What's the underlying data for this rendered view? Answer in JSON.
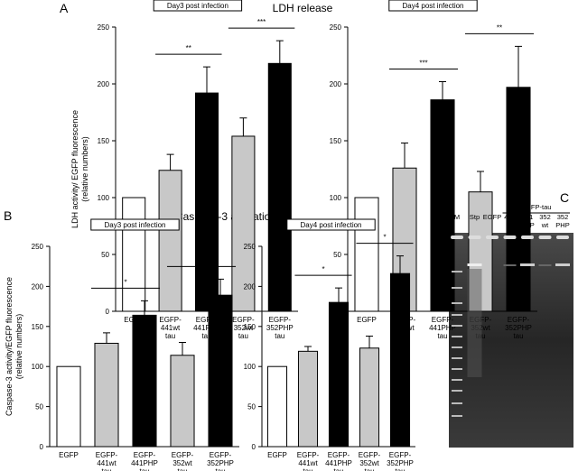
{
  "figure": {
    "panel_a": "A",
    "title_a": "LDH release",
    "panel_b": "B",
    "title_b": "Caspase-3 activation",
    "panel_c": "C"
  },
  "chart_data": [
    {
      "type": "bar",
      "subtitle": "Day3 post infection",
      "ylabel": "LDH activity/ EGFP fluorescence\n(relative numbers)",
      "categories": [
        "EGFP",
        "EGFP-\n441wt\ntau",
        "EGFP-\n441PHP\ntau",
        "EGFP-\n352wt\ntau",
        "EGFP-\n352PHP\ntau"
      ],
      "values": [
        100,
        124,
        192,
        154,
        218
      ],
      "errors": [
        0,
        14,
        23,
        16,
        20
      ],
      "colors": [
        "#ffffff",
        "#c8c8c8",
        "#000000",
        "#c8c8c8",
        "#000000"
      ],
      "ylim": [
        0,
        250
      ],
      "yticks": [
        0,
        50,
        100,
        150,
        200,
        250
      ],
      "significance": [
        "**",
        "***"
      ]
    },
    {
      "type": "bar",
      "subtitle": "Day4 post infection",
      "categories": [
        "EGFP",
        "EGFP-\n441wt\ntau",
        "EGFP-\n441PHP\ntau",
        "EGFP-\n352wt\ntau",
        "EGFP-\n352PHP\ntau"
      ],
      "values": [
        100,
        126,
        186,
        105,
        197
      ],
      "errors": [
        0,
        22,
        16,
        18,
        36
      ],
      "colors": [
        "#ffffff",
        "#c8c8c8",
        "#000000",
        "#c8c8c8",
        "#000000"
      ],
      "ylim": [
        0,
        250
      ],
      "yticks": [
        0,
        50,
        100,
        150,
        200,
        250
      ],
      "significance": [
        "***",
        "**"
      ]
    },
    {
      "type": "bar",
      "subtitle": "Day3 post infection",
      "ylabel": "Caspase-3 activity/EGFP fluorescence\n(relative numbers)",
      "categories": [
        "EGFP",
        "EGFP-\n441wt\ntau",
        "EGFP-\n441PHP\ntau",
        "EGFP-\n352wt\ntau",
        "EGFP-\n352PHP\ntau"
      ],
      "values": [
        100,
        129,
        164,
        114,
        189
      ],
      "errors": [
        0,
        13,
        18,
        16,
        20
      ],
      "colors": [
        "#ffffff",
        "#c8c8c8",
        "#000000",
        "#c8c8c8",
        "#000000"
      ],
      "ylim": [
        0,
        250
      ],
      "yticks": [
        0,
        50,
        100,
        150,
        200,
        250
      ],
      "significance": [
        "*",
        "***"
      ]
    },
    {
      "type": "bar",
      "subtitle": "Day4 post infection",
      "categories": [
        "EGFP",
        "EGFP-\n441wt\ntau",
        "EGFP-\n441PHP\ntau",
        "EGFP-\n352wt\ntau",
        "EGFP-\n352PHP\ntau"
      ],
      "values": [
        100,
        119,
        180,
        123,
        216
      ],
      "errors": [
        0,
        6,
        18,
        15,
        22
      ],
      "colors": [
        "#ffffff",
        "#c8c8c8",
        "#000000",
        "#c8c8c8",
        "#000000"
      ],
      "ylim": [
        0,
        250
      ],
      "yticks": [
        0,
        50,
        100,
        150,
        200,
        250
      ],
      "significance": [
        "*",
        "*"
      ]
    }
  ],
  "gel": {
    "header": "EGFP-tau",
    "lanes": [
      "M",
      "Stp",
      "EGFP",
      "441\nwt",
      "441\nPHP",
      "352\nwt",
      "352\nPHP"
    ]
  }
}
